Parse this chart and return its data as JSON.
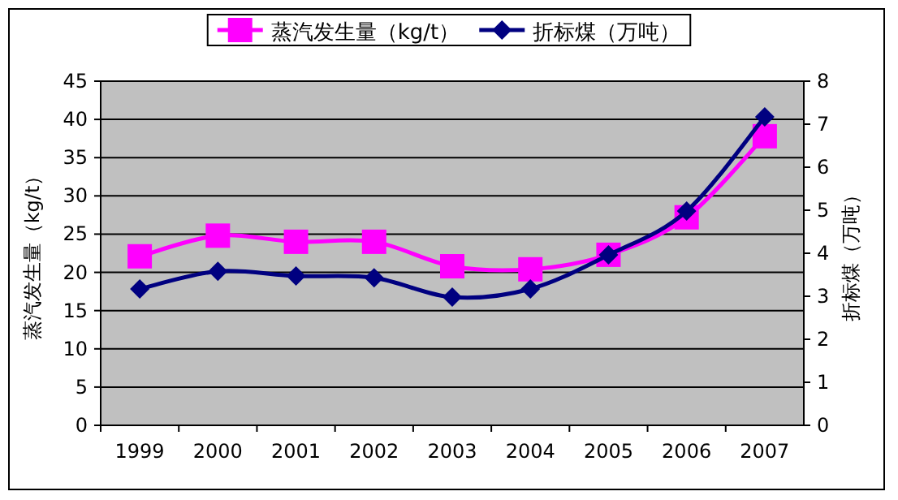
{
  "chart_data": {
    "type": "line",
    "categories": [
      "1999",
      "2000",
      "2001",
      "2002",
      "2003",
      "2004",
      "2005",
      "2006",
      "2007"
    ],
    "series": [
      {
        "name": "蒸汽发生量（kg/t）",
        "color": "#ff00ff",
        "marker": "square",
        "values": [
          22.1,
          24.8,
          24.0,
          24.0,
          20.8,
          20.4,
          22.3,
          27.2,
          37.8
        ]
      },
      {
        "name": "折标煤（万吨）",
        "color": "#000080",
        "marker": "diamond",
        "axis": "y2",
        "values": [
          3.17,
          3.58,
          3.47,
          3.43,
          2.98,
          3.17,
          3.96,
          4.98,
          7.17
        ]
      }
    ],
    "ylabel": "蒸汽发生量（kg/t）",
    "y2label": "折标煤（万吨）",
    "ylim": [
      0,
      45
    ],
    "yticks": [
      0,
      5,
      10,
      15,
      20,
      25,
      30,
      35,
      40,
      45
    ],
    "y2lim": [
      0,
      8
    ],
    "y2ticks": [
      0,
      1,
      2,
      3,
      4,
      5,
      6,
      7,
      8
    ],
    "grid": "y",
    "legend": "top"
  }
}
